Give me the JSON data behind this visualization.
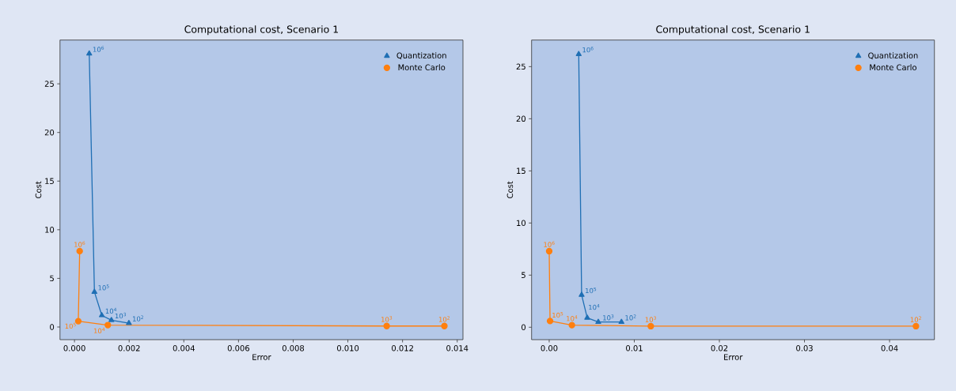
{
  "chart_data": [
    {
      "type": "line",
      "title": "Computational cost, Scenario 1",
      "xlabel": "Error",
      "ylabel": "Cost",
      "xlim": [
        -0.00053,
        0.01421
      ],
      "ylim": [
        -1.3,
        29.5
      ],
      "xticks": [
        {
          "value": 0,
          "label": "0.000"
        },
        {
          "value": 0.002,
          "label": "0.002"
        },
        {
          "value": 0.004,
          "label": "0.004"
        },
        {
          "value": 0.006,
          "label": "0.006"
        },
        {
          "value": 0.008,
          "label": "0.008"
        },
        {
          "value": 0.01,
          "label": "0.010"
        },
        {
          "value": 0.012,
          "label": "0.012"
        },
        {
          "value": 0.014,
          "label": "0.014"
        }
      ],
      "yticks": [
        0,
        5,
        10,
        15,
        20,
        25
      ],
      "legend": "top right",
      "series": [
        {
          "name": "Quantization",
          "color": "#1f6fb4",
          "marker": "triangle",
          "x": [
            0.00054,
            0.00073,
            0.001,
            0.00135,
            0.00199
          ],
          "values": [
            28.1,
            3.6,
            1.2,
            0.7,
            0.4
          ]
        },
        {
          "name": "Monte Carlo",
          "color": "#ff7f0e",
          "marker": "circle",
          "x": [
            0.00019,
            0.00014,
            0.00122,
            0.01142,
            0.01353
          ],
          "values": [
            7.8,
            0.6,
            0.2,
            0.1,
            0.1
          ]
        }
      ],
      "annotations": [
        {
          "text": "10$^{6}$",
          "x": 0.00054,
          "y": 28.1
        },
        {
          "text": "10$^{5}$",
          "x": 0.00073,
          "y": 3.6
        },
        {
          "text": "10$^{4}$",
          "x": 0.001,
          "y": 1.2
        },
        {
          "text": "10$^{3}$",
          "x": 0.00135,
          "y": 0.7
        },
        {
          "text": "10$^{2}$",
          "x": 0.00199,
          "y": 0.4
        },
        {
          "text": "10$^{6}$",
          "x": 0.00019,
          "y": 7.8
        },
        {
          "text": "10$^{5}$",
          "x": 0.00014,
          "y": 0.6
        },
        {
          "text": "10$^{4}$",
          "x": 0.00122,
          "y": 0.2
        },
        {
          "text": "10$^{3}$",
          "x": 0.01142,
          "y": 0.1
        },
        {
          "text": "10$^{2}$",
          "x": 0.01353,
          "y": 0.1
        }
      ]
    },
    {
      "type": "line",
      "title": "Computational cost, Scenario 1",
      "xlabel": "Error",
      "ylabel": "Cost",
      "xlim": [
        -0.00207,
        0.04527
      ],
      "ylim": [
        -1.19,
        27.55
      ],
      "xticks": [
        {
          "value": 0,
          "label": "0.00"
        },
        {
          "value": 0.01,
          "label": "0.01"
        },
        {
          "value": 0.02,
          "label": "0.02"
        },
        {
          "value": 0.03,
          "label": "0.03"
        },
        {
          "value": 0.04,
          "label": "0.04"
        }
      ],
      "yticks": [
        0,
        5,
        10,
        15,
        20,
        25
      ],
      "legend": "top right",
      "series": [
        {
          "name": "Quantization",
          "color": "#1f6fb4",
          "marker": "triangle",
          "x": [
            0.00347,
            0.00381,
            0.00447,
            0.00577,
            0.00849
          ],
          "values": [
            26.2,
            3.1,
            0.9,
            0.5,
            0.5
          ]
        },
        {
          "name": "Monte Carlo",
          "color": "#ff7f0e",
          "marker": "circle",
          "x": [
            0.0,
            0.0001,
            0.00267,
            0.01194,
            0.0431
          ],
          "values": [
            7.3,
            0.6,
            0.2,
            0.1,
            0.1
          ]
        }
      ],
      "annotations": [
        {
          "text": "10$^{6}$",
          "x": 0.00347,
          "y": 26.2
        },
        {
          "text": "10$^{5}$",
          "x": 0.00381,
          "y": 3.1
        },
        {
          "text": "10$^{4}$",
          "x": 0.00447,
          "y": 0.9
        },
        {
          "text": "10$^{3}$",
          "x": 0.00577,
          "y": 0.5
        },
        {
          "text": "10$^{2}$",
          "x": 0.00849,
          "y": 0.5
        },
        {
          "text": "10$^{6}$",
          "x": 0.0,
          "y": 7.3
        },
        {
          "text": "10$^{5}$",
          "x": 0.0001,
          "y": 0.6
        },
        {
          "text": "10$^{4}$",
          "x": 0.00267,
          "y": 0.2
        },
        {
          "text": "10$^{3}$",
          "x": 0.01194,
          "y": 0.1
        },
        {
          "text": "10$^{2}$",
          "x": 0.0431,
          "y": 0.1
        }
      ]
    }
  ]
}
